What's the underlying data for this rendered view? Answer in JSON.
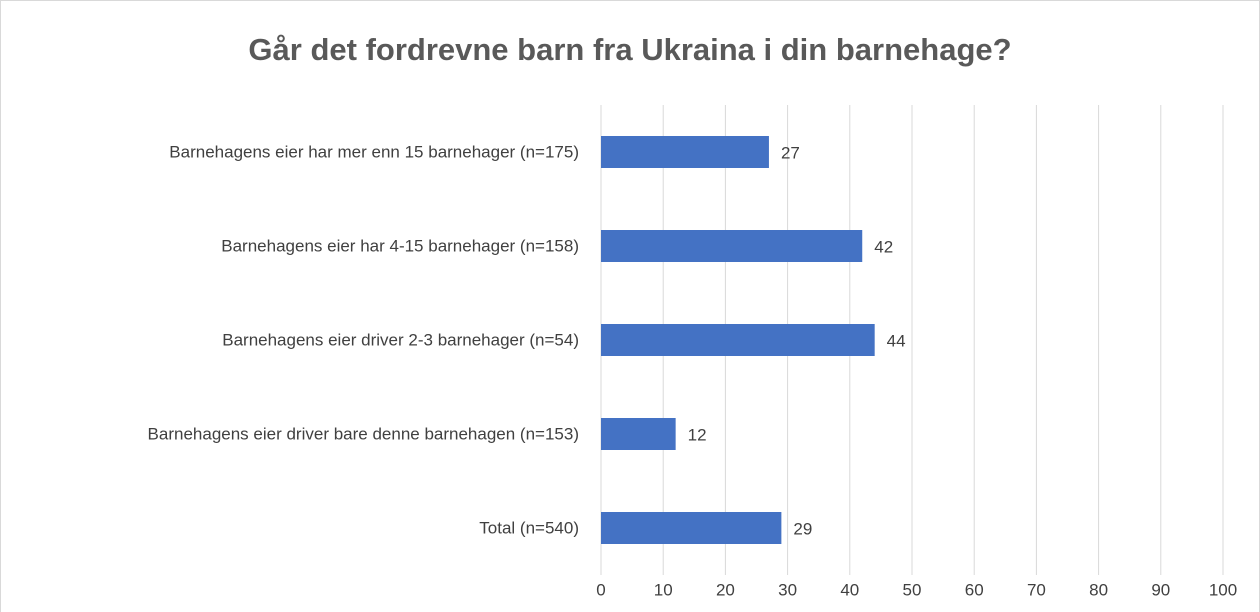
{
  "chart_data": {
    "type": "bar",
    "orientation": "horizontal",
    "title": "Går det fordrevne barn fra Ukraina i din barnehage?",
    "categories": [
      "Barnehagens eier har mer enn 15 barnehager (n=175)",
      "Barnehagens eier har 4-15 barnehager (n=158)",
      "Barnehagens eier driver 2-3 barnehager (n=54)",
      "Barnehagens eier driver bare denne barnehagen (n=153)",
      "Total (n=540)"
    ],
    "values": [
      27,
      42,
      44,
      12,
      29
    ],
    "color": "#4472c4",
    "xlim": [
      0,
      100
    ],
    "xticks": [
      0,
      10,
      20,
      30,
      40,
      50,
      60,
      70,
      80,
      90,
      100
    ],
    "grid": true
  }
}
